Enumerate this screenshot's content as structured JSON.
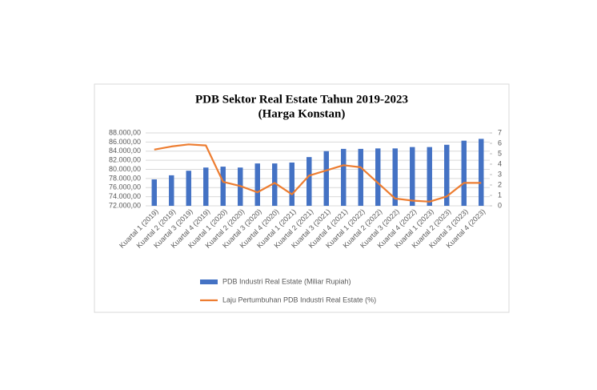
{
  "chart_data": {
    "type": "bar-line",
    "title": "PDB Sektor Real Estate Tahun 2019-2023",
    "subtitle": "(Harga  Konstan)",
    "categories": [
      "Kuartal 1 (2019)",
      "Kuartal 2 (2019)",
      "Kuartal 3 (2019)",
      "Kuartal 4 (2019)",
      "Kuartal 1 (2020)",
      "Kuartal 2 (2020)",
      "Kuartal 3 (2020)",
      "Kuartal 4 (2020)",
      "Kuartal 1 (2021)",
      "Kuartal 2 (2021)",
      "Kuartal 3 (2021)",
      "Kuartal 4 (2021)",
      "Kuartal 1 (2022)",
      "Kuartal 2 (2022)",
      "Kuartal 3 (2022)",
      "Kuartal 4 (2022)",
      "Kuartal 1 (2023)",
      "Kuartal 2 (2023)",
      "Kuartal 3 (2023)",
      "Kuartal 4 (2023)"
    ],
    "series": [
      {
        "name": "PDB Industri Real Estate (Miliar Rupiah)",
        "type": "bar",
        "color": "#4472c4",
        "values": [
          77800,
          78700,
          79700,
          80400,
          80600,
          80400,
          81300,
          81300,
          81500,
          82700,
          84000,
          84500,
          84500,
          84600,
          84600,
          84900,
          84900,
          85400,
          86300,
          86700
        ]
      },
      {
        "name": "Laju Pertumbuhan PDB Industri Real Estate (%)",
        "type": "line",
        "color": "#ed7d31",
        "axis": "y2",
        "values": [
          5.4,
          5.7,
          5.9,
          5.8,
          2.3,
          1.9,
          1.3,
          2.2,
          1.1,
          2.9,
          3.4,
          3.9,
          3.7,
          2.2,
          0.7,
          0.5,
          0.4,
          0.9,
          2.2,
          2.2
        ]
      }
    ],
    "ylim": [
      72000,
      88000
    ],
    "yticks": [
      {
        "value": 72000,
        "label": "72.000,00"
      },
      {
        "value": 74000,
        "label": "74.000,00"
      },
      {
        "value": 76000,
        "label": "76.000,00"
      },
      {
        "value": 78000,
        "label": "78.000,00"
      },
      {
        "value": 80000,
        "label": "80.000,00"
      },
      {
        "value": 82000,
        "label": "82.000,00"
      },
      {
        "value": 84000,
        "label": "84.000,00"
      },
      {
        "value": 86000,
        "label": "86.000,00"
      },
      {
        "value": 88000,
        "label": "88.000,00"
      }
    ],
    "y2lim": [
      0,
      7
    ],
    "y2ticks": [
      0,
      1,
      2,
      3,
      4,
      5,
      6,
      7
    ],
    "grid": true,
    "legend": "bottom"
  }
}
